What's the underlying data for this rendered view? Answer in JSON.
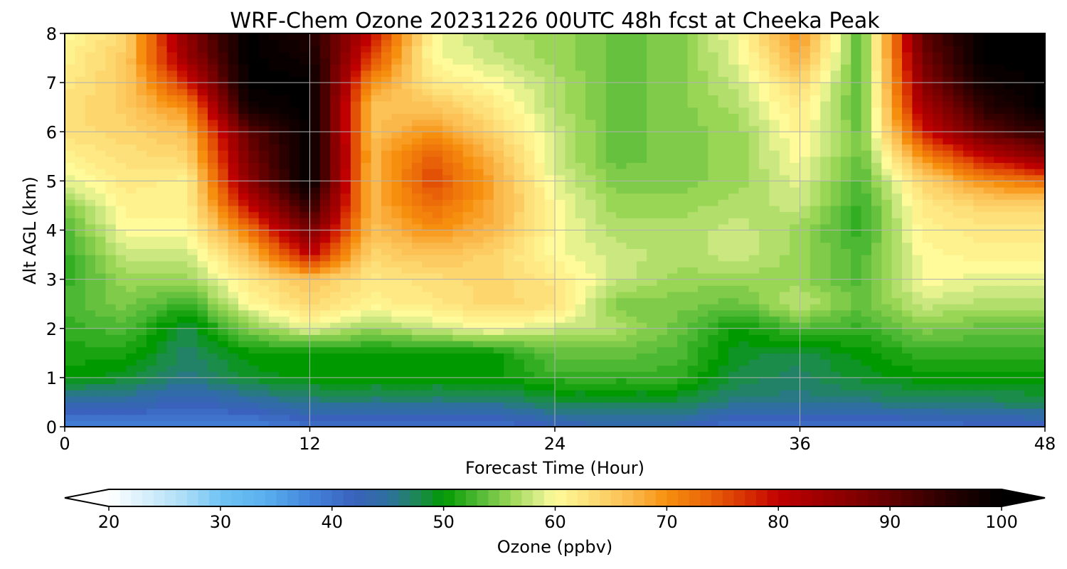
{
  "chart_data": {
    "type": "heatmap",
    "title": "WRF-Chem Ozone  20231226 00UTC 48h fcst at Cheeka Peak",
    "xlabel": "Forecast Time (Hour)",
    "ylabel": "Alt AGL (km)",
    "xlim": [
      0,
      48
    ],
    "ylim": [
      0,
      8
    ],
    "x_ticks": [
      0,
      12,
      24,
      36,
      48
    ],
    "y_ticks": [
      0,
      1,
      2,
      3,
      4,
      5,
      6,
      7,
      8
    ],
    "grid": true,
    "x": [
      0,
      3,
      6,
      9,
      12,
      15,
      18,
      21,
      24,
      27,
      30,
      33,
      36,
      39,
      42,
      45,
      48
    ],
    "y": [
      0,
      0.5,
      1,
      1.5,
      2,
      2.5,
      3,
      3.5,
      4,
      4.5,
      5,
      5.5,
      6,
      6.5,
      7,
      7.5,
      8
    ],
    "z": [
      [
        38,
        38,
        39,
        38,
        40,
        40,
        40,
        40,
        42,
        44,
        43,
        40,
        40,
        40,
        40,
        41,
        41
      ],
      [
        44,
        44,
        42,
        44,
        46,
        46,
        46,
        46,
        48,
        48,
        48,
        46,
        46,
        46,
        47,
        47,
        48
      ],
      [
        50,
        49,
        46,
        49,
        50,
        50,
        50,
        50,
        52,
        52,
        52,
        48,
        47,
        49,
        50,
        50,
        50
      ],
      [
        51,
        51,
        47,
        50,
        50,
        50,
        50,
        50,
        54,
        54,
        53,
        49,
        48,
        50,
        52,
        52,
        52
      ],
      [
        52,
        53,
        48,
        55,
        59,
        56,
        58,
        60,
        58,
        57,
        54,
        50,
        53,
        52,
        55,
        54,
        54
      ],
      [
        53,
        55,
        52,
        60,
        64,
        61,
        62,
        64,
        63,
        55,
        55,
        54,
        58,
        54,
        58,
        57,
        57
      ],
      [
        52,
        56,
        56,
        62,
        66,
        62,
        63,
        64,
        62,
        58,
        56,
        56,
        56,
        53,
        60,
        59,
        59
      ],
      [
        52,
        58,
        58,
        66,
        80,
        64,
        66,
        64,
        60,
        58,
        57,
        58,
        56,
        53,
        60,
        61,
        61
      ],
      [
        53,
        60,
        60,
        72,
        88,
        66,
        70,
        67,
        60,
        57,
        57,
        58,
        56,
        52,
        61,
        62,
        62
      ],
      [
        55,
        61,
        61,
        80,
        95,
        67,
        73,
        68,
        60,
        56,
        56,
        57,
        58,
        52,
        62,
        64,
        64
      ],
      [
        59,
        62,
        61,
        86,
        100,
        66,
        76,
        68,
        59,
        55,
        55,
        56,
        59,
        53,
        64,
        70,
        73
      ],
      [
        61,
        63,
        64,
        88,
        100,
        67,
        74,
        67,
        58,
        54,
        55,
        56,
        60,
        54,
        70,
        80,
        86
      ],
      [
        63,
        64,
        66,
        90,
        100,
        66,
        70,
        64,
        58,
        54,
        55,
        56,
        61,
        54,
        78,
        90,
        95
      ],
      [
        63,
        65,
        70,
        98,
        100,
        66,
        66,
        62,
        57,
        54,
        55,
        57,
        62,
        53,
        83,
        95,
        100
      ],
      [
        62,
        65,
        78,
        100,
        100,
        70,
        62,
        60,
        57,
        54,
        55,
        58,
        64,
        53,
        86,
        98,
        100
      ],
      [
        61,
        65,
        84,
        100,
        98,
        76,
        60,
        58,
        56,
        54,
        55,
        59,
        68,
        53,
        88,
        100,
        100
      ],
      [
        60,
        64,
        86,
        100,
        96,
        80,
        60,
        57,
        56,
        54,
        55,
        60,
        70,
        53,
        90,
        100,
        100
      ]
    ],
    "colorbar": {
      "label": "Ozone  (ppbv)",
      "min": 20,
      "max": 100,
      "ticks": [
        20,
        30,
        40,
        50,
        60,
        70,
        80,
        90,
        100
      ],
      "extend": "both",
      "color_stops": [
        {
          "v": 20,
          "c": "#ffffff"
        },
        {
          "v": 27,
          "c": "#a8dcf6"
        },
        {
          "v": 30,
          "c": "#6fc3f3"
        },
        {
          "v": 34,
          "c": "#5ab0ee"
        },
        {
          "v": 38,
          "c": "#4384dc"
        },
        {
          "v": 42,
          "c": "#3a62bc"
        },
        {
          "v": 45,
          "c": "#2e6fa0"
        },
        {
          "v": 48,
          "c": "#1b8c4a"
        },
        {
          "v": 50,
          "c": "#009900"
        },
        {
          "v": 53,
          "c": "#4db833"
        },
        {
          "v": 56,
          "c": "#99d655"
        },
        {
          "v": 58,
          "c": "#cbe880"
        },
        {
          "v": 60,
          "c": "#fffb9a"
        },
        {
          "v": 63,
          "c": "#fde07a"
        },
        {
          "v": 67,
          "c": "#fbb84a"
        },
        {
          "v": 70,
          "c": "#f78f0e"
        },
        {
          "v": 74,
          "c": "#e86008"
        },
        {
          "v": 78,
          "c": "#d22200"
        },
        {
          "v": 80,
          "c": "#c00000"
        },
        {
          "v": 88,
          "c": "#780000"
        },
        {
          "v": 95,
          "c": "#2a0000"
        },
        {
          "v": 100,
          "c": "#000000"
        }
      ]
    }
  }
}
